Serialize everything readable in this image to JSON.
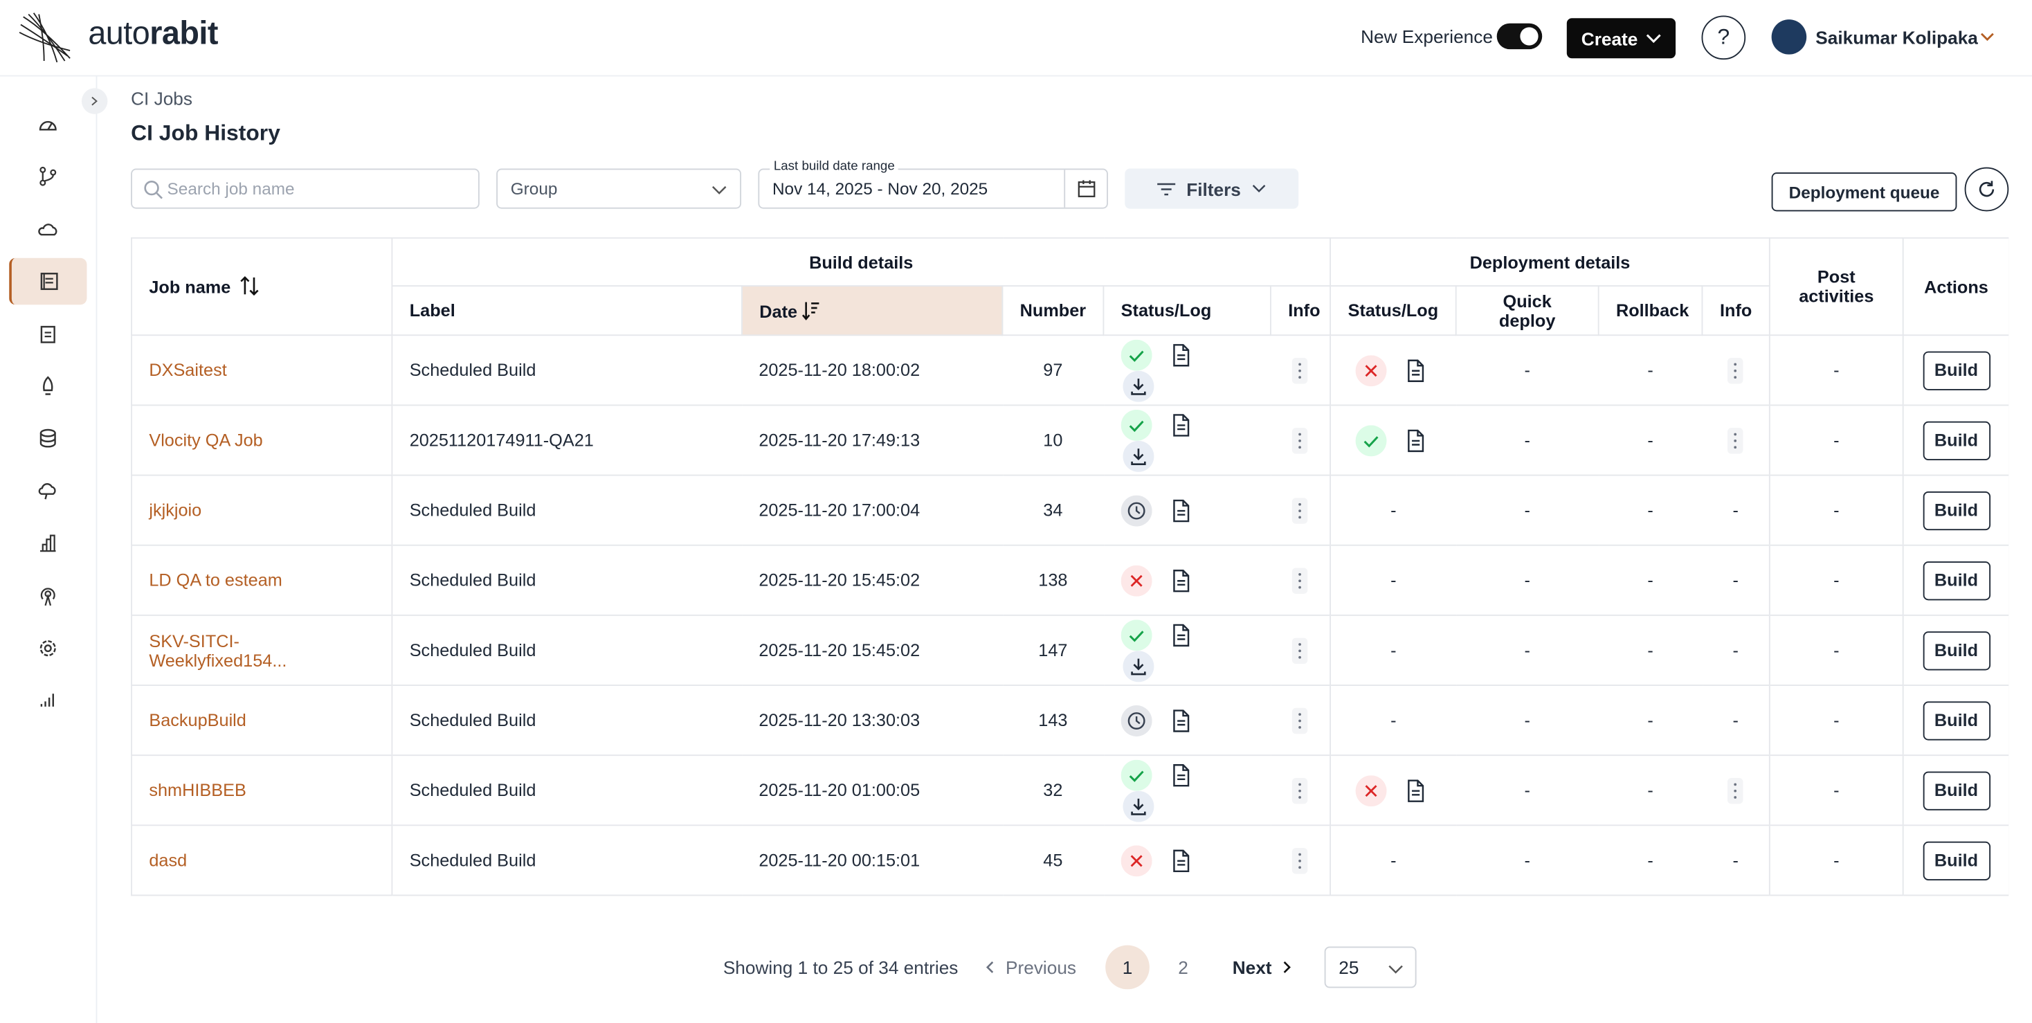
{
  "header": {
    "brand_light": "auto",
    "brand_bold": "rabit",
    "new_experience": "New Experience",
    "create": "Create",
    "help": "?",
    "user": "Saikumar Kolipaka"
  },
  "breadcrumb": "CI Jobs",
  "title": "CI Job History",
  "toolbar": {
    "search_placeholder": "Search job name",
    "group": "Group",
    "date_range_label": "Last build date range",
    "date_range": "Nov 14, 2025 - Nov 20, 2025",
    "filters": "Filters",
    "deployment_queue": "Deployment queue"
  },
  "table": {
    "group_headers": {
      "build": "Build details",
      "deployment": "Deployment details",
      "post": "Post activities",
      "actions": "Actions"
    },
    "columns": {
      "job_name": "Job name",
      "label": "Label",
      "date": "Date",
      "number": "Number",
      "build_status": "Status/Log",
      "build_info": "Info",
      "deploy_status": "Status/Log",
      "quick_deploy": "Quick deploy",
      "rollback": "Rollback",
      "deploy_info": "Info"
    },
    "rows": [
      {
        "job": "DXSaitest",
        "label": "Scheduled Build",
        "date": "2025-11-20 18:00:02",
        "number": 97,
        "build_status": "success",
        "download": true,
        "deploy_status": "failed",
        "quick_deploy": "-",
        "rollback": "-",
        "deploy_info": "menu",
        "post": "-",
        "action": "Build"
      },
      {
        "job": "Vlocity QA Job",
        "label": "20251120174911-QA21",
        "date": "2025-11-20 17:49:13",
        "number": 10,
        "build_status": "success",
        "download": true,
        "deploy_status": "success",
        "quick_deploy": "-",
        "rollback": "-",
        "deploy_info": "menu",
        "post": "-",
        "action": "Build"
      },
      {
        "job": "jkjkjoio",
        "label": "Scheduled Build",
        "date": "2025-11-20 17:00:04",
        "number": 34,
        "build_status": "pending",
        "download": false,
        "deploy_status": "-",
        "quick_deploy": "-",
        "rollback": "-",
        "deploy_info": "-",
        "post": "-",
        "action": "Build"
      },
      {
        "job": "LD QA to esteam",
        "label": "Scheduled Build",
        "date": "2025-11-20 15:45:02",
        "number": 138,
        "build_status": "failed",
        "download": false,
        "deploy_status": "-",
        "quick_deploy": "-",
        "rollback": "-",
        "deploy_info": "-",
        "post": "-",
        "action": "Build"
      },
      {
        "job": "SKV-SITCI-Weeklyfixed154...",
        "label": "Scheduled Build",
        "date": "2025-11-20 15:45:02",
        "number": 147,
        "build_status": "success",
        "download": true,
        "deploy_status": "-",
        "quick_deploy": "-",
        "rollback": "-",
        "deploy_info": "-",
        "post": "-",
        "action": "Build"
      },
      {
        "job": "BackupBuild",
        "label": "Scheduled Build",
        "date": "2025-11-20 13:30:03",
        "number": 143,
        "build_status": "pending",
        "download": false,
        "deploy_status": "-",
        "quick_deploy": "-",
        "rollback": "-",
        "deploy_info": "-",
        "post": "-",
        "action": "Build"
      },
      {
        "job": "shmHIBBEB",
        "label": "Scheduled Build",
        "date": "2025-11-20 01:00:05",
        "number": 32,
        "build_status": "success",
        "download": true,
        "deploy_status": "failed",
        "quick_deploy": "-",
        "rollback": "-",
        "deploy_info": "menu",
        "post": "-",
        "action": "Build"
      },
      {
        "job": "dasd",
        "label": "Scheduled Build",
        "date": "2025-11-20 00:15:01",
        "number": 45,
        "build_status": "failed",
        "download": false,
        "deploy_status": "-",
        "quick_deploy": "-",
        "rollback": "-",
        "deploy_info": "-",
        "post": "-",
        "action": "Build"
      }
    ]
  },
  "pagination": {
    "summary": "Showing 1 to 25 of 34 entries",
    "previous": "Previous",
    "pages": [
      "1",
      "2"
    ],
    "next": "Next",
    "page_size": "25"
  }
}
